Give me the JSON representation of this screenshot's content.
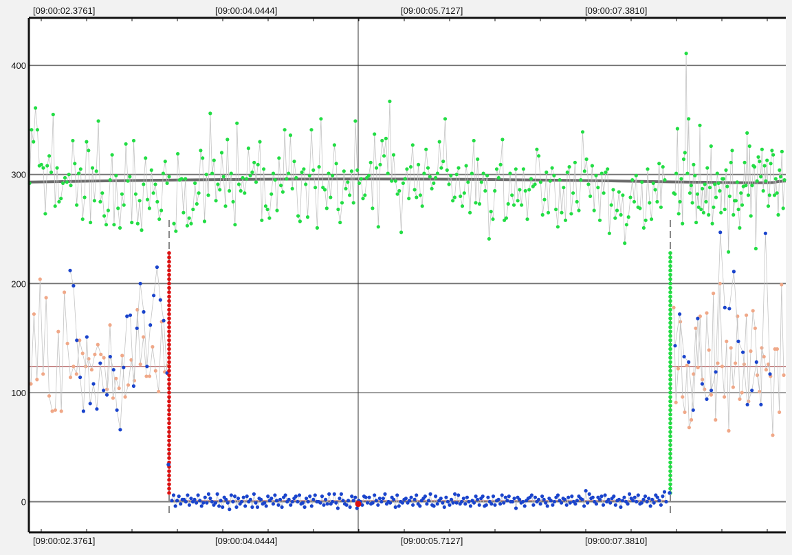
{
  "chart_data": {
    "type": "scatter",
    "title": "",
    "xlabel": "",
    "ylabel": "",
    "grid": true,
    "x_tick_labels": [
      "[09:00:02.3761]",
      "[09:00:04.0444]",
      "[09:00:05.7127]",
      "[09:00:07.3810]"
    ],
    "y_ticks": [
      0,
      100,
      200,
      300,
      400
    ],
    "ylim": [
      -29,
      420
    ],
    "reference_lines": {
      "green_mean": 294,
      "salmon_mean": 124,
      "zero_line": 1
    },
    "colors": {
      "green": "#22dd44",
      "salmon": "#f0a888",
      "blue": "#1a44cc",
      "red": "#dd1111",
      "mean_line": "#6b6b6b",
      "salmon_mean_line": "#b86a6a",
      "grid": "#777777",
      "connector": "#c4c4c4"
    },
    "series": [
      {
        "values": [
          292,
          341,
          330,
          361,
          341,
          308,
          309,
          306,
          264,
          308,
          317,
          302,
          355,
          271,
          306,
          275,
          278,
          292,
          297,
          293,
          300,
          290,
          331,
          310,
          272,
          301,
          305,
          259,
          279,
          330,
          322,
          256,
          306,
          276,
          303,
          349,
          275,
          283,
          262,
          254,
          267,
          295,
          318,
          254,
          299,
          269,
          251,
          282,
          272,
          328,
          294,
          298,
          256,
          331,
          282,
          255,
          276,
          249,
          291,
          315,
          277,
          269,
          304,
          283,
          291,
          275,
          259,
          267,
          301,
          312,
          292,
          298,
          255,
          248,
          319,
          295,
          296,
          265,
          296,
          253,
          260,
          255,
          268,
          292,
          273,
          283,
          322,
          315,
          257,
          300,
          281,
          356,
          301,
          313,
          276,
          291,
          286,
          320,
          298,
          271,
          332,
          285,
          301,
          275,
          254,
          347,
          291,
          285,
          297,
          283,
          296,
          324,
          299,
          302,
          311,
          293,
          309,
          330,
          258,
          305,
          271,
          268,
          260,
          282,
          301,
          295,
          267,
          315,
          290,
          284,
          341,
          296,
          301,
          336,
          287,
          312,
          297,
          262,
          257,
          302,
          305,
          291,
          261,
          299,
          341,
          304,
          288,
          251,
          307,
          351,
          288,
          286,
          269,
          301,
          279,
          299,
          327,
          310,
          268,
          256,
          274,
          303,
          287,
          293,
          281,
          303,
          274,
          349,
          304,
          292,
          296,
          278,
          281,
          297,
          299,
          311,
          269,
          337,
          306,
          252,
          309,
          331,
          317,
          333,
          301,
          367,
          294,
          318,
          294,
          282,
          285,
          247,
          292,
          296,
          305,
          278,
          307,
          327,
          286,
          279,
          309,
          281,
          271,
          301,
          323,
          306,
          298,
          287,
          292,
          297,
          301,
          330,
          306,
          312,
          351,
          304,
          291,
          299,
          276,
          279,
          300,
          306,
          280,
          271,
          283,
          308,
          293,
          265,
          301,
          331,
          274,
          314,
          273,
          293,
          301,
          285,
          299,
          241,
          266,
          259,
          285,
          305,
          297,
          309,
          332,
          258,
          260,
          273,
          301,
          281,
          272,
          305,
          276,
          286,
          272,
          305,
          285,
          259,
          286,
          296,
          289,
          291,
          323,
          317,
          293,
          263,
          277,
          302,
          265,
          294,
          306,
          299,
          268,
          252,
          295,
          265,
          288,
          258,
          302,
          307,
          264,
          283,
          311,
          275,
          267,
          295,
          339,
          303,
          314,
          291,
          280,
          308,
          267,
          299,
          288,
          258,
          301,
          283,
          302,
          305,
          246,
          272,
          286,
          260,
          267,
          284,
          263,
          281,
          237,
          254,
          261,
          279,
          295,
          275,
          299,
          270,
          269,
          293,
          251,
          258,
          305,
          274,
          259,
          292,
          286,
          275,
          310,
          270,
          307,
          295,
          283,
          282,
          301,
          342,
          264,
          275,
          296,
          255,
          314,
          320,
          411,
          301,
          351,
          283,
          290,
          274,
          309,
          299,
          256,
          282,
          270,
          345,
          268,
          287,
          265,
          291,
          275,
          306,
          263,
          288,
          326,
          255,
          270,
          291,
          279,
          301,
          292,
          285,
          265,
          296,
          296,
          268,
          304,
          289,
          229,
          280,
          311,
          322,
          263,
          276,
          276,
          293,
          268,
          251,
          283,
          272,
          289,
          311,
          290,
          338,
          281,
          326,
          262,
          290,
          308,
          307,
          232,
          294,
          316,
          312,
          298,
          323,
          285,
          308,
          294,
          313,
          271,
          281,
          310,
          322,
          318,
          281,
          296,
          283,
          263,
          304,
          298,
          321,
          269,
          295
        ]
      },
      {
        "values": [
          108,
          172,
          112,
          204,
          117,
          187,
          97,
          83,
          84,
          156,
          83,
          192,
          145,
          114,
          124,
          117,
          148,
          136,
          124,
          131,
          121,
          135,
          144,
          135,
          132,
          103,
          162,
          95,
          113,
          104,
          134,
          96,
          107,
          130,
          111,
          176,
          126,
          151,
          115,
          115,
          142,
          120,
          101,
          165,
          119,
          125
        ]
      },
      {
        "values": [
          212,
          198,
          148,
          114,
          83,
          151,
          90,
          108,
          85,
          127,
          102,
          98,
          133,
          121,
          84,
          66,
          123,
          170,
          171,
          106,
          159,
          200,
          174,
          124,
          162,
          189,
          215,
          185,
          166,
          118
        ]
      },
      {
        "values": [
          1,
          6,
          -4,
          1,
          5,
          -2,
          2,
          2,
          0,
          6,
          -3,
          3,
          0,
          2,
          -1,
          6,
          1,
          -4,
          -1,
          4,
          -1,
          7,
          3,
          0,
          -3,
          -1,
          7,
          -4,
          1,
          -5,
          4,
          2,
          -1,
          -7,
          6,
          0,
          5,
          -5,
          3,
          -2,
          0,
          4,
          -4,
          5,
          0,
          2,
          -5,
          7,
          -1,
          -5,
          3,
          2,
          -2,
          -1,
          -4,
          5,
          1,
          3,
          -2,
          6,
          1,
          -3,
          2,
          -5,
          4,
          6,
          0,
          2,
          -3,
          0,
          3,
          5,
          0,
          6,
          -2,
          -1,
          -5,
          3,
          0,
          5,
          -4,
          2,
          6,
          0,
          0,
          -1,
          5,
          -3,
          2,
          -2,
          7,
          -2,
          0,
          7,
          -1,
          -6,
          3,
          7,
          1,
          -2,
          -3,
          1,
          -5,
          5,
          1,
          4,
          -6,
          1,
          0,
          -3,
          5,
          4,
          -1,
          4,
          -2,
          -1,
          6,
          1,
          -3,
          3,
          0,
          3,
          7,
          -2,
          0,
          -1,
          4,
          2,
          -5,
          6,
          -4,
          0,
          -1,
          2,
          3,
          -1,
          1,
          4,
          -3,
          2,
          6,
          -2,
          -4,
          1,
          3,
          5,
          -2,
          1,
          7,
          -3,
          -4,
          5,
          -2,
          1,
          3,
          -1,
          -5,
          4,
          0,
          -3,
          2,
          -1,
          7,
          -1,
          6,
          -2,
          0,
          3,
          -2,
          4,
          0,
          -4,
          1,
          -1,
          5,
          2,
          -3,
          3,
          5,
          -4,
          -3,
          4,
          0,
          -2,
          5,
          -3,
          1,
          2,
          -2,
          6,
          -1,
          4,
          1,
          5,
          0,
          0,
          3,
          -6,
          4,
          2,
          -1,
          0,
          -4,
          1,
          3,
          4,
          6,
          -3,
          4,
          0,
          2,
          -2,
          5,
          2,
          -1,
          -4,
          3,
          1,
          -3,
          0,
          4,
          6,
          1,
          -1,
          3,
          2,
          -3,
          4,
          -1,
          5,
          0,
          -2,
          1,
          5,
          3,
          2,
          -4,
          10,
          -1,
          7,
          3,
          4,
          0,
          -2,
          4,
          2,
          5,
          -3,
          6,
          0,
          2,
          -1,
          3,
          5,
          -3,
          1,
          2,
          -5,
          1,
          4,
          0,
          -2,
          7,
          3,
          1,
          4,
          0,
          6,
          -2,
          -1,
          2,
          5,
          0,
          3,
          -4,
          2,
          -1,
          6,
          4,
          1,
          -3,
          5,
          9,
          0
        ]
      },
      {
        "values": [
          143,
          172,
          133,
          128,
          84,
          168,
          108,
          94,
          102,
          119,
          247,
          178,
          177,
          211,
          147,
          137,
          89,
          102,
          128,
          89,
          246,
          117
        ]
      },
      {
        "values": [
          178,
          91,
          122,
          165,
          96,
          82,
          125,
          68,
          75,
          117,
          159,
          123,
          170,
          112,
          103,
          173,
          139,
          98,
          191,
          75,
          127,
          200,
          124,
          96,
          147,
          65,
          141,
          105,
          127,
          170,
          94,
          100,
          126,
          171,
          92,
          138,
          175,
          159,
          116,
          101,
          141,
          133,
          121,
          126,
          115,
          61,
          140,
          140,
          82,
          199,
          116
        ]
      }
    ]
  }
}
